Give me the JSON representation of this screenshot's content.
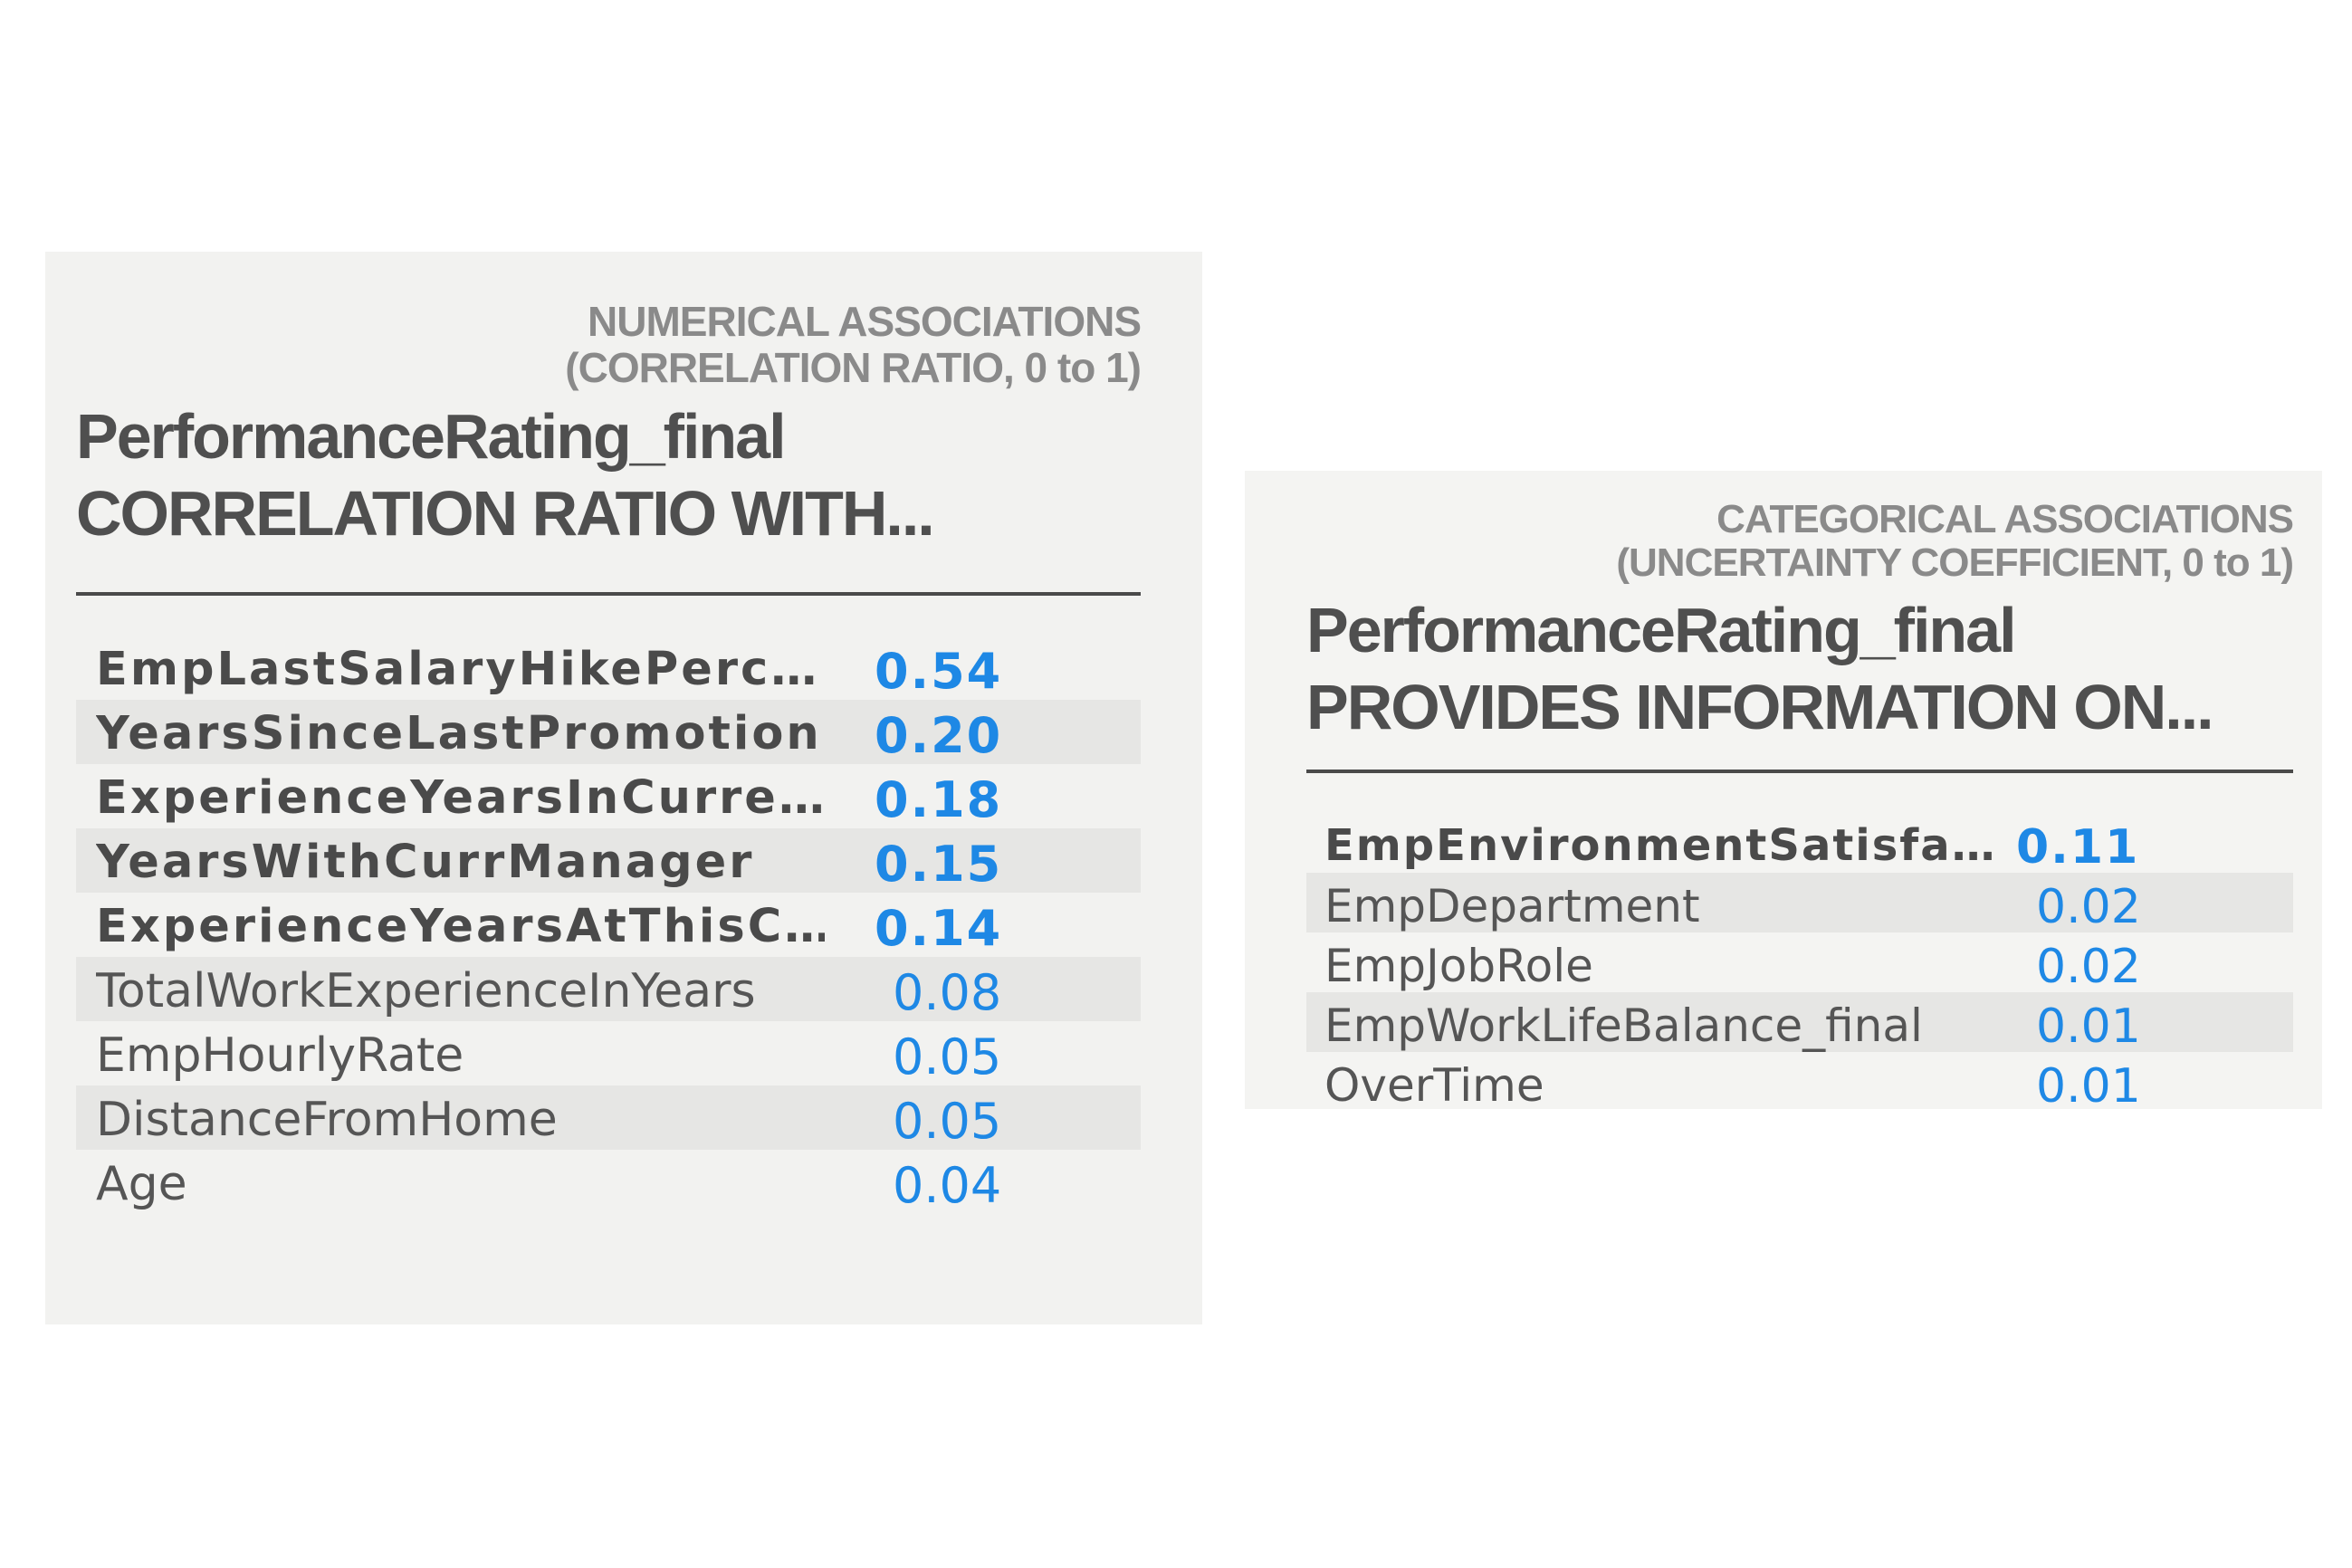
{
  "numerical": {
    "subtitle_line1": "NUMERICAL ASSOCIATIONS",
    "subtitle_line2": "(CORRELATION RATIO, 0 to 1)",
    "title_line1": "PerformanceRating_final",
    "title_line2": "CORRELATION RATIO WITH...",
    "rows": [
      {
        "name": "EmpLastSalaryHikePerc…",
        "value": "0.54"
      },
      {
        "name": "YearsSinceLastPromotion",
        "value": "0.20"
      },
      {
        "name": "ExperienceYearsInCurre…",
        "value": "0.18"
      },
      {
        "name": "YearsWithCurrManager",
        "value": "0.15"
      },
      {
        "name": "ExperienceYearsAtThisC…",
        "value": "0.14"
      },
      {
        "name": "TotalWorkExperienceInYears",
        "value": "0.08"
      },
      {
        "name": "EmpHourlyRate",
        "value": "0.05"
      },
      {
        "name": "DistanceFromHome",
        "value": "0.05"
      },
      {
        "name": "Age",
        "value": "0.04"
      }
    ]
  },
  "categorical": {
    "subtitle_line1": "CATEGORICAL ASSOCIATIONS",
    "subtitle_line2": "(UNCERTAINTY COEFFICIENT, 0 to 1)",
    "title_line1": "PerformanceRating_final",
    "title_line2": "PROVIDES INFORMATION ON...",
    "rows": [
      {
        "name": "EmpEnvironmentSatisfa…",
        "value": "0.11"
      },
      {
        "name": "EmpDepartment",
        "value": "0.02"
      },
      {
        "name": "EmpJobRole",
        "value": "0.02"
      },
      {
        "name": "EmpWorkLifeBalance_final",
        "value": "0.01"
      },
      {
        "name": "OverTime",
        "value": "0.01"
      }
    ]
  },
  "colors": {
    "value_blue": "#1e88e5",
    "panel_bg": "#f2f2f0",
    "row_shade": "#e6e6e4",
    "title_text": "#4f4f4f",
    "subtitle_text": "#8a8a8a"
  }
}
